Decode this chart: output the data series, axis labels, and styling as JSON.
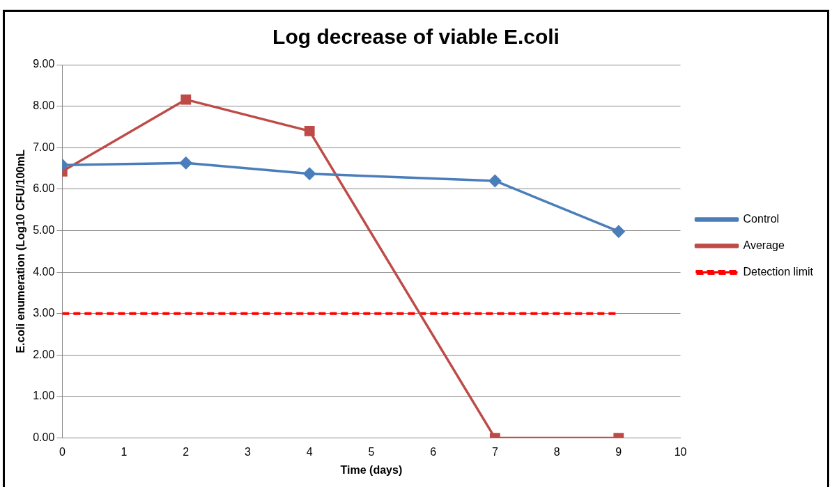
{
  "chart_data": {
    "type": "line",
    "title": "Log decrease of viable E.coli",
    "xlabel": "Time (days)",
    "ylabel": "E.coli enumeration (Log10 CFU/100mL",
    "series": [
      {
        "name": "Control",
        "color": "#4a7ebb",
        "x": [
          0,
          2,
          4,
          7,
          9
        ],
        "values": [
          6.58,
          6.63,
          6.37,
          6.2,
          4.98
        ],
        "marker": "diamond",
        "line_style": "solid"
      },
      {
        "name": "Average",
        "color": "#be4b48",
        "x": [
          0,
          2,
          4,
          7,
          9
        ],
        "values": [
          6.43,
          8.16,
          7.4,
          0,
          0
        ],
        "marker": "square",
        "line_style": "solid"
      },
      {
        "name": "Detection limit",
        "color": "#ff0000",
        "x": [
          0,
          9
        ],
        "values": [
          3,
          3
        ],
        "marker": "none",
        "line_style": "dashed"
      }
    ],
    "xlim": [
      0,
      10
    ],
    "xticks": [
      0,
      1,
      2,
      3,
      4,
      5,
      6,
      7,
      8,
      9,
      10
    ],
    "ylim": [
      0,
      9
    ],
    "yticks": [
      {
        "value": 0,
        "label": "0.00"
      },
      {
        "value": 1,
        "label": "1.00"
      },
      {
        "value": 2,
        "label": "2.00"
      },
      {
        "value": 3,
        "label": "3.00"
      },
      {
        "value": 4,
        "label": "4.00"
      },
      {
        "value": 5,
        "label": "5.00"
      },
      {
        "value": 6,
        "label": "6.00"
      },
      {
        "value": 7,
        "label": "7.00"
      },
      {
        "value": 8,
        "label": "8.00"
      },
      {
        "value": 9,
        "label": "9.00"
      }
    ],
    "grid": "y",
    "legend": "right"
  }
}
